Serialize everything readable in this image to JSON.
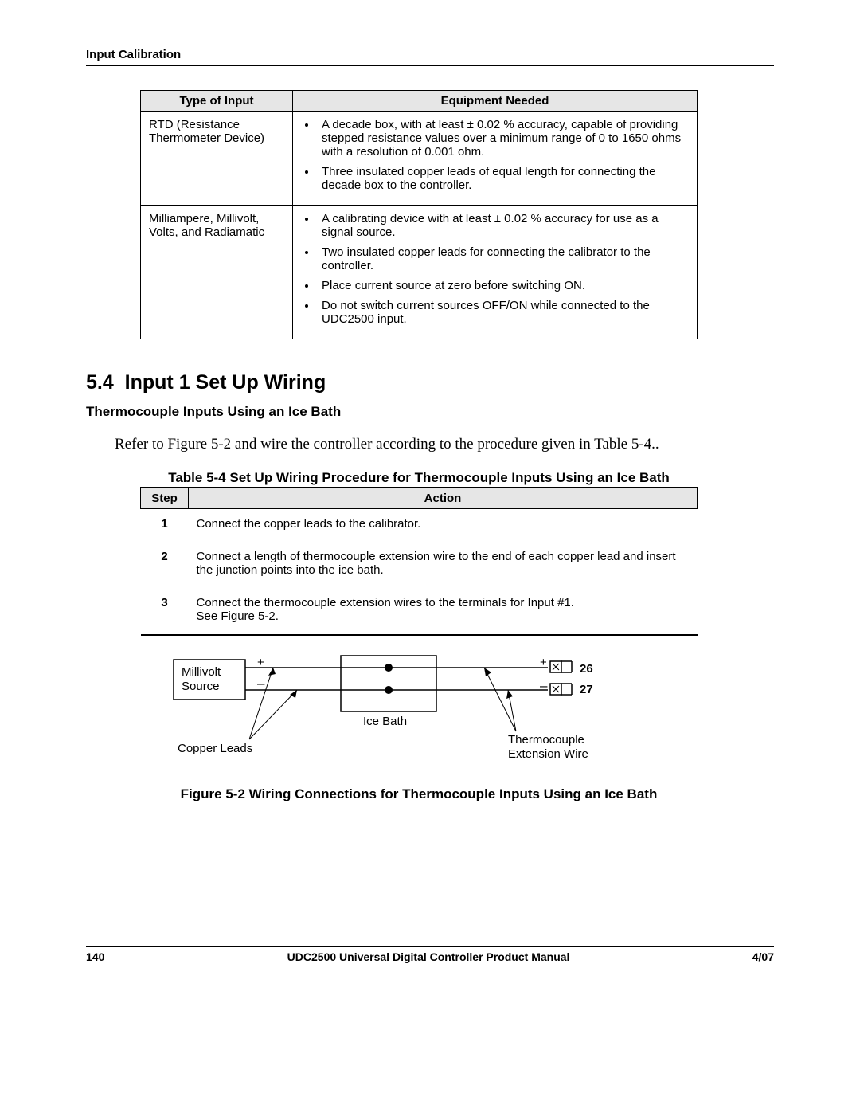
{
  "header": {
    "label": "Input Calibration"
  },
  "equip_table": {
    "columns": [
      "Type of Input",
      "Equipment Needed"
    ],
    "rows": [
      {
        "type": "RTD (Resistance Thermometer Device)",
        "items": [
          "A decade box, with at least ± 0.02 % accuracy, capable of providing stepped resistance values over a minimum range of 0 to 1650 ohms with a resolution of 0.001 ohm.",
          "Three insulated copper leads of equal length for connecting the decade box to the controller."
        ]
      },
      {
        "type": "Milliampere, Millivolt, Volts, and Radiamatic",
        "items": [
          "A calibrating device with at least ± 0.02 % accuracy for use as a signal source.",
          "Two insulated copper leads for connecting the calibrator to the controller.",
          "Place current source at zero before switching ON.",
          "Do not switch current sources OFF/ON while connected to the UDC2500 input."
        ]
      }
    ]
  },
  "section": {
    "number": "5.4",
    "title": "Input 1 Set Up Wiring",
    "subsection": "Thermocouple Inputs Using an Ice Bath",
    "para": "Refer to Figure 5-2 and wire the controller according to the procedure given in Table 5-4.."
  },
  "steps_caption": "Table 5-4  Set Up Wiring Procedure for Thermocouple Inputs Using an Ice Bath",
  "steps_table": {
    "columns": [
      "Step",
      "Action"
    ],
    "rows": [
      {
        "step": "1",
        "action": "Connect the copper leads to the calibrator."
      },
      {
        "step": "2",
        "action": "Connect a length of thermocouple extension wire to the end of each copper lead and insert the junction points into the ice bath."
      },
      {
        "step": "3",
        "action": "Connect the thermocouple extension wires to the terminals for Input #1.\nSee Figure 5-2."
      }
    ]
  },
  "figure": {
    "caption": "Figure 5-2  Wiring Connections for Thermocouple Inputs Using an Ice Bath",
    "labels": {
      "source": "Millivolt\nSource",
      "plus": "+",
      "minus": "–",
      "icebath": "Ice Bath",
      "copper": "Copper Leads",
      "tcwire": "Thermocouple\nExtension Wire",
      "term1": "26",
      "term2": "27"
    },
    "colors": {
      "stroke": "#000000",
      "fill_none": "none"
    }
  },
  "footer": {
    "page": "140",
    "title": "UDC2500 Universal Digital Controller Product Manual",
    "date": "4/07"
  }
}
